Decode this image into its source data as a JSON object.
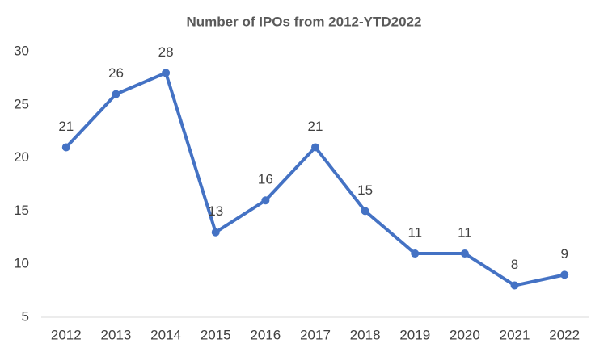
{
  "chart_data": {
    "type": "line",
    "title": "Number of IPOs from 2012-YTD2022",
    "categories": [
      "2012",
      "2013",
      "2014",
      "2015",
      "2016",
      "2017",
      "2018",
      "2019",
      "2020",
      "2021",
      "2022"
    ],
    "values": [
      21,
      26,
      28,
      13,
      16,
      21,
      15,
      11,
      11,
      8,
      9
    ],
    "color": "#4472c4",
    "ylim": [
      5,
      30
    ],
    "yticks": [
      5,
      10,
      15,
      20,
      25,
      30
    ],
    "grid": false
  }
}
